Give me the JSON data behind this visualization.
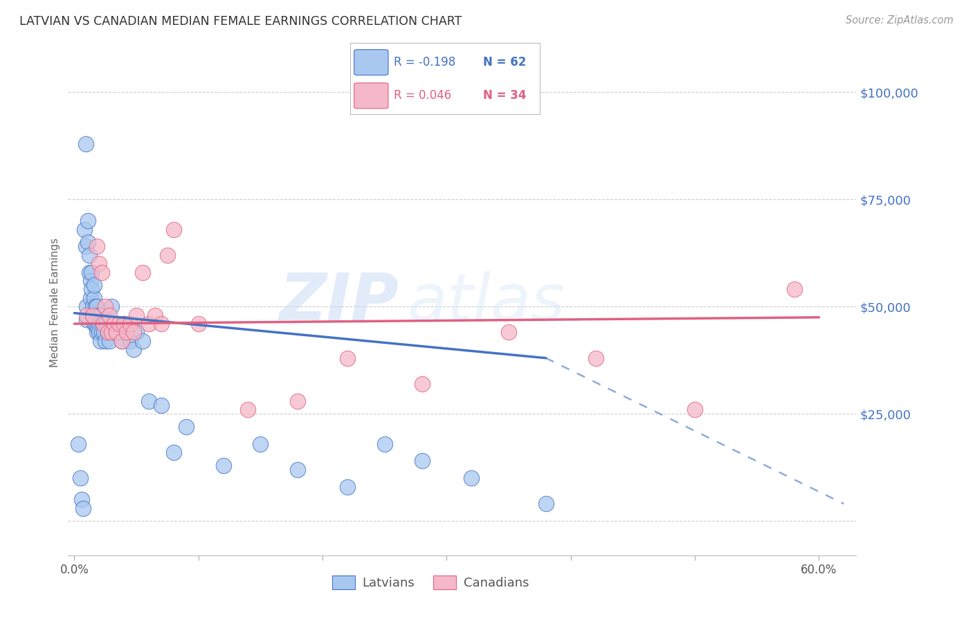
{
  "title": "LATVIAN VS CANADIAN MEDIAN FEMALE EARNINGS CORRELATION CHART",
  "source": "Source: ZipAtlas.com",
  "ylabel_label": "Median Female Earnings",
  "y_tick_color": "#4472c4",
  "xlim": [
    -0.005,
    0.63
  ],
  "ylim": [
    -8000,
    110000
  ],
  "background_color": "#ffffff",
  "grid_color": "#cccccc",
  "latvian_color": "#a8c8f0",
  "canadian_color": "#f5b8c8",
  "latvian_line_color": "#4472c4",
  "canadian_line_color": "#e06080",
  "latvian_x": [
    0.003,
    0.005,
    0.006,
    0.007,
    0.008,
    0.009,
    0.009,
    0.01,
    0.01,
    0.011,
    0.011,
    0.012,
    0.012,
    0.013,
    0.013,
    0.014,
    0.014,
    0.015,
    0.015,
    0.016,
    0.016,
    0.016,
    0.017,
    0.017,
    0.018,
    0.018,
    0.019,
    0.019,
    0.02,
    0.02,
    0.021,
    0.021,
    0.022,
    0.023,
    0.024,
    0.025,
    0.026,
    0.027,
    0.028,
    0.03,
    0.032,
    0.034,
    0.036,
    0.038,
    0.04,
    0.042,
    0.045,
    0.048,
    0.05,
    0.055,
    0.06,
    0.07,
    0.08,
    0.09,
    0.12,
    0.15,
    0.18,
    0.22,
    0.25,
    0.28,
    0.32,
    0.38
  ],
  "latvian_y": [
    18000,
    10000,
    5000,
    3000,
    68000,
    88000,
    64000,
    50000,
    47000,
    70000,
    65000,
    62000,
    58000,
    56000,
    52000,
    58000,
    54000,
    50000,
    48000,
    52000,
    55000,
    46000,
    50000,
    46000,
    50000,
    44000,
    48000,
    45000,
    46000,
    44000,
    48000,
    42000,
    44000,
    46000,
    44000,
    42000,
    46000,
    44000,
    42000,
    50000,
    46000,
    44000,
    44000,
    42000,
    46000,
    44000,
    42000,
    40000,
    44000,
    42000,
    28000,
    27000,
    16000,
    22000,
    13000,
    18000,
    12000,
    8000,
    18000,
    14000,
    10000,
    4000
  ],
  "canadian_x": [
    0.01,
    0.015,
    0.018,
    0.02,
    0.022,
    0.023,
    0.025,
    0.027,
    0.028,
    0.03,
    0.032,
    0.034,
    0.036,
    0.038,
    0.04,
    0.042,
    0.045,
    0.048,
    0.05,
    0.055,
    0.06,
    0.065,
    0.07,
    0.075,
    0.08,
    0.1,
    0.14,
    0.18,
    0.22,
    0.28,
    0.35,
    0.42,
    0.5,
    0.58
  ],
  "canadian_y": [
    48000,
    48000,
    64000,
    60000,
    58000,
    46000,
    50000,
    44000,
    48000,
    44000,
    46000,
    44000,
    46000,
    42000,
    46000,
    44000,
    46000,
    44000,
    48000,
    58000,
    46000,
    48000,
    46000,
    62000,
    68000,
    46000,
    26000,
    28000,
    38000,
    32000,
    44000,
    38000,
    26000,
    54000
  ]
}
